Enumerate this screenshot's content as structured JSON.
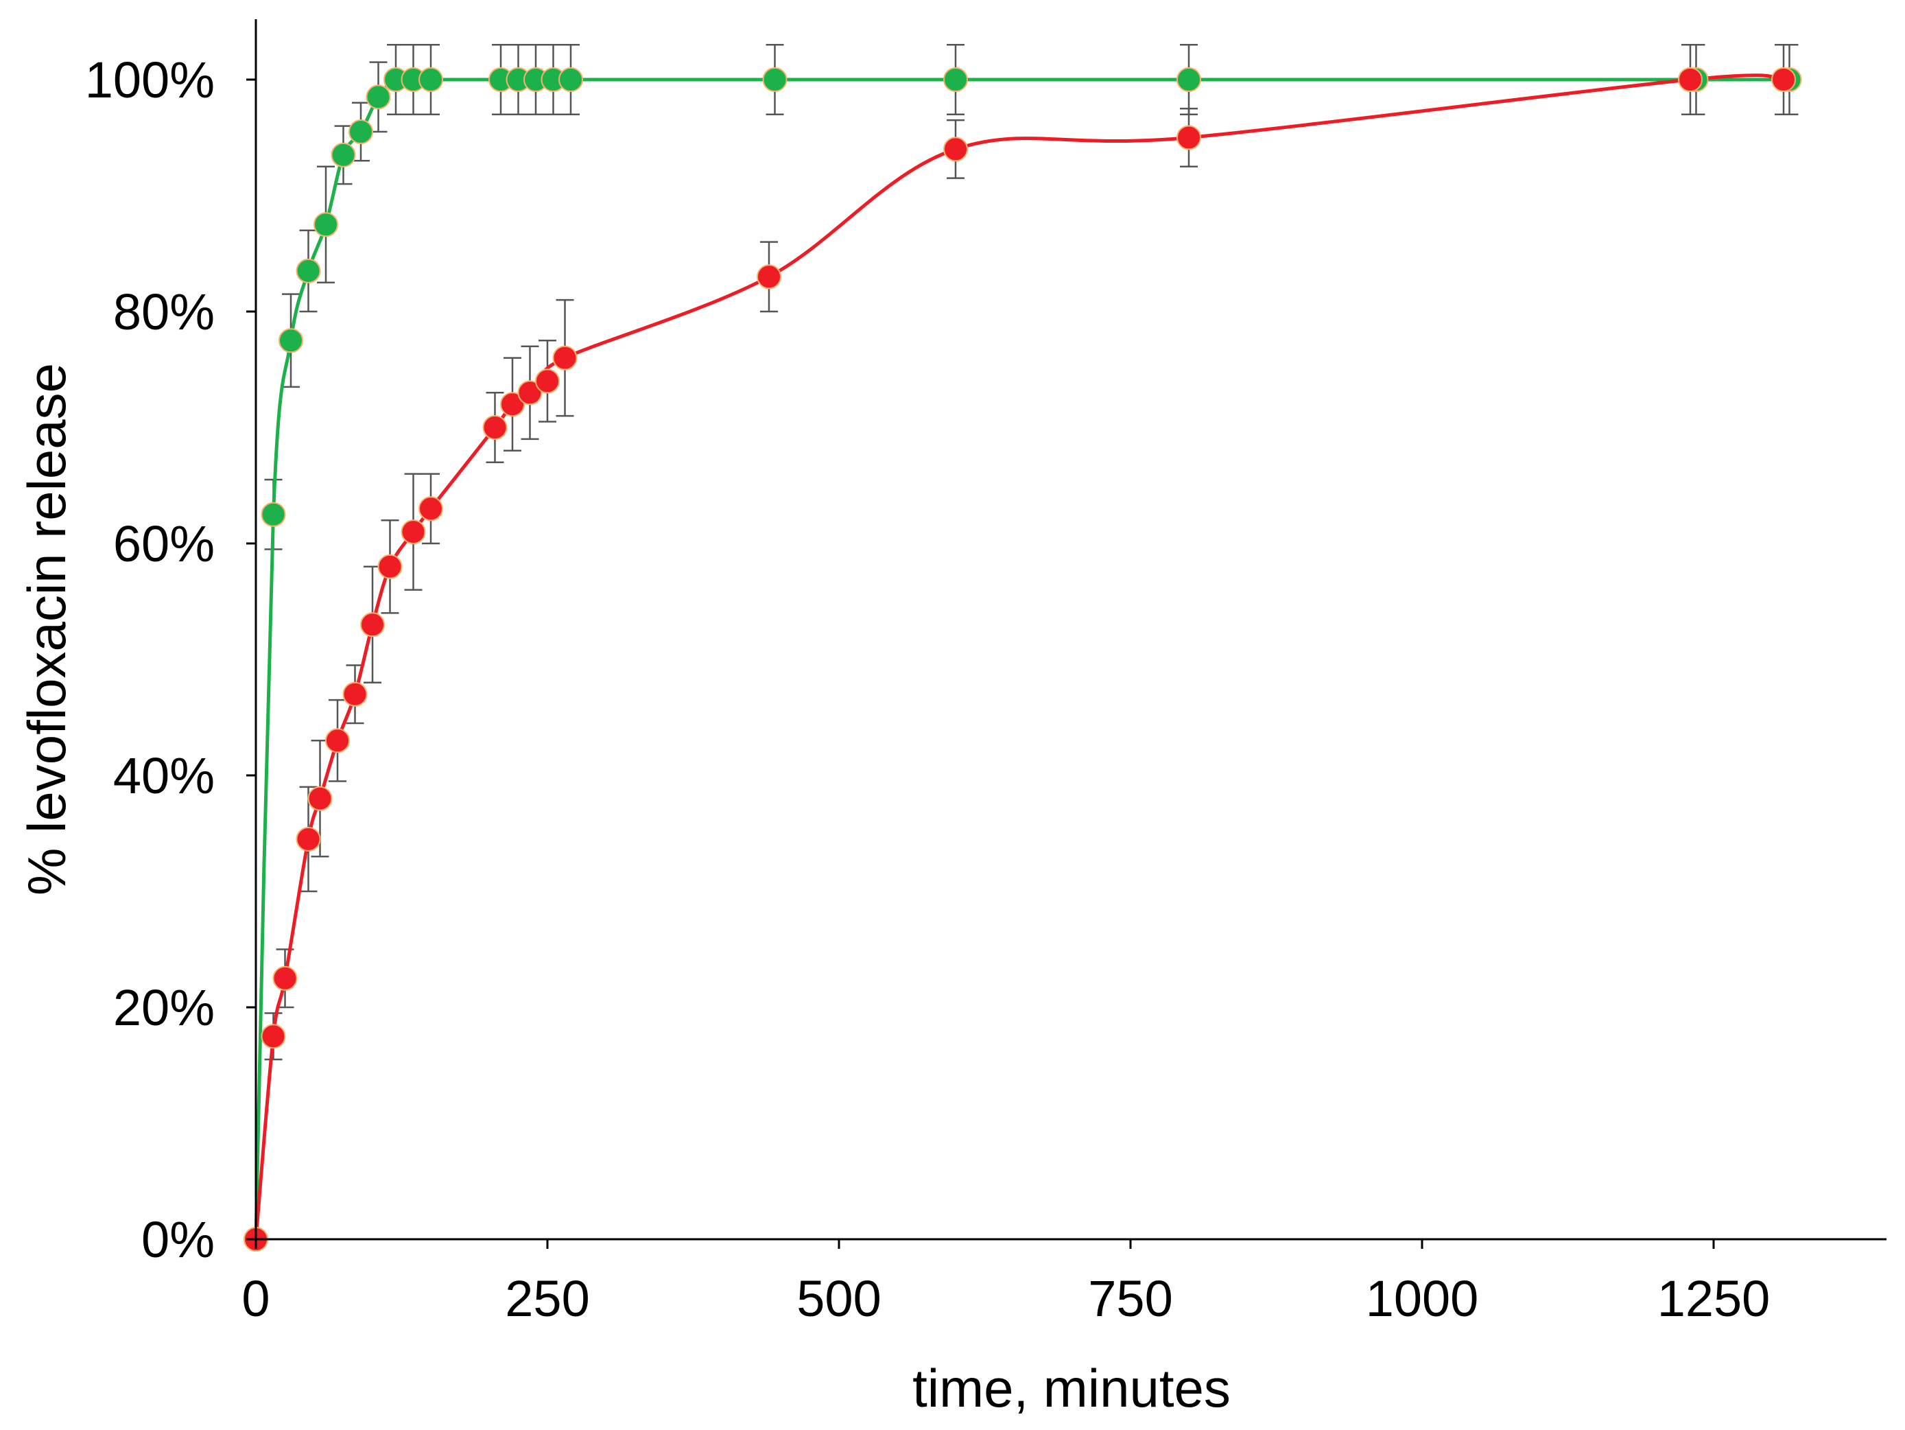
{
  "chart_data": {
    "type": "line",
    "xlabel": "time, minutes",
    "ylabel": "% levofloxacin release",
    "xlim": [
      0,
      1400
    ],
    "ylim": [
      0,
      100
    ],
    "xticks": [
      0,
      250,
      500,
      750,
      1000,
      1250
    ],
    "xtick_labels": [
      "0",
      "250",
      "500",
      "750",
      "1000",
      "1250"
    ],
    "yticks": [
      0,
      20,
      40,
      60,
      80,
      100
    ],
    "ytick_labels": [
      "0%",
      "20%",
      "40%",
      "60%",
      "80%",
      "100%"
    ],
    "grid": false,
    "legend": "none",
    "series": [
      {
        "color": "#1db14b",
        "x": [
          0,
          15,
          30,
          45,
          60,
          75,
          90,
          105,
          120,
          135,
          150,
          210,
          225,
          240,
          255,
          270,
          445,
          600,
          800,
          1235,
          1315
        ],
        "y": [
          0,
          62.5,
          77.5,
          83.5,
          87.5,
          93.5,
          95.5,
          98.5,
          100,
          100,
          100,
          100,
          100,
          100,
          100,
          100,
          100,
          100,
          100,
          100,
          100
        ],
        "error": [
          0,
          3,
          4,
          3.5,
          5,
          2.5,
          2.5,
          3,
          3,
          3,
          3,
          3,
          3,
          3,
          3,
          3,
          3,
          3,
          3,
          3,
          3
        ]
      },
      {
        "color": "#ee1c24",
        "x": [
          0,
          15,
          25,
          45,
          55,
          70,
          85,
          100,
          115,
          135,
          150,
          205,
          220,
          235,
          250,
          265,
          440,
          600,
          800,
          1230,
          1310
        ],
        "y": [
          0,
          17.5,
          22.5,
          34.5,
          38,
          43,
          47,
          53,
          58,
          61,
          63,
          70,
          72,
          73,
          74,
          76,
          83,
          94,
          95,
          100,
          100
        ],
        "error": [
          0,
          2,
          2.5,
          4.5,
          5,
          3.5,
          2.5,
          5,
          4,
          5,
          3,
          3,
          4,
          4,
          3.5,
          5,
          3,
          2.5,
          2.5,
          3,
          3
        ]
      }
    ]
  }
}
